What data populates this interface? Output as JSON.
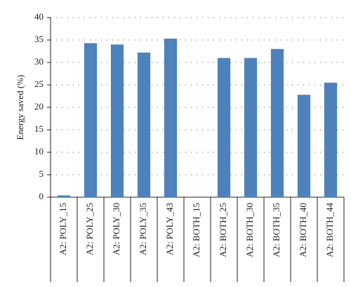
{
  "chart_data": {
    "type": "bar",
    "y_label": "Energy saved (%)",
    "categories": [
      "A2: POLY_15",
      "A2: POLY_25",
      "A2: POLY_30",
      "A2: POLY_35",
      "A2: POLY_43",
      "A2: BOTH_15",
      "A2: BOTH_25",
      "A2: BOTH_30",
      "A2: BOTH_35",
      "A2: BOTH_40",
      "A2: BOTH_44"
    ],
    "values": [
      0.4,
      34.3,
      34.0,
      32.2,
      35.3,
      0,
      31.0,
      31.0,
      33.0,
      22.8,
      25.5
    ],
    "color": "#4f81bd",
    "ylim": [
      0,
      40
    ],
    "yticks": [
      0,
      5,
      10,
      15,
      20,
      25,
      30,
      35,
      40
    ],
    "grid": true
  }
}
